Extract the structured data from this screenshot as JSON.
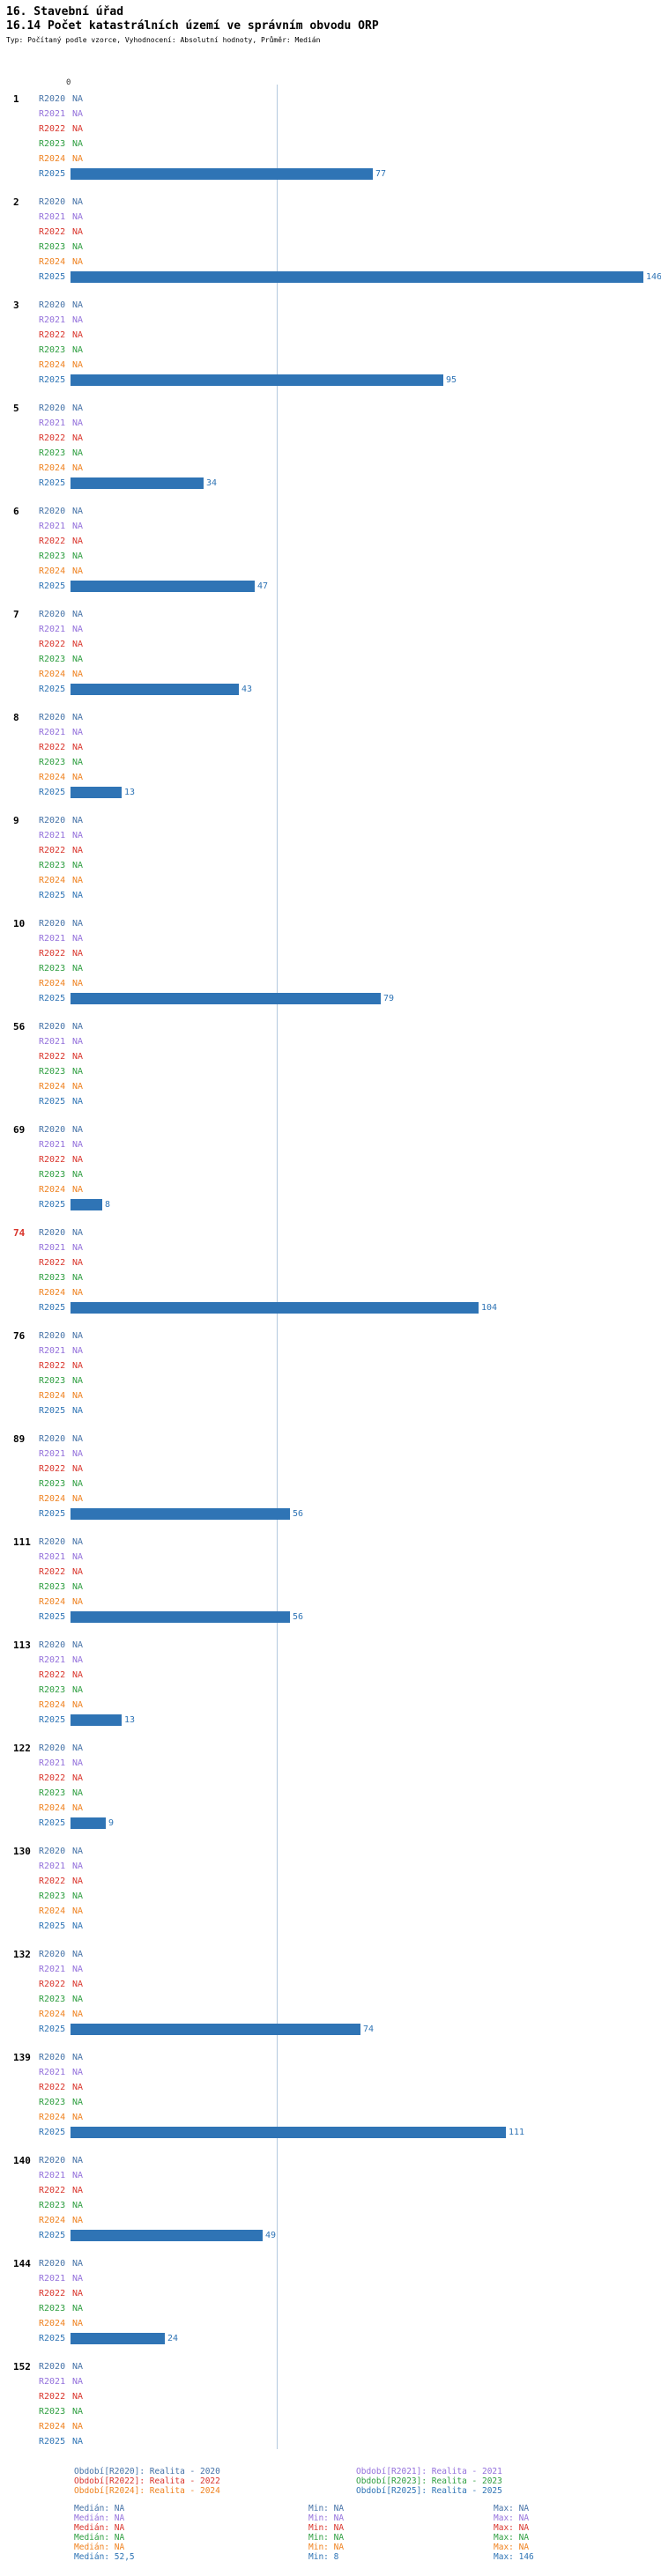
{
  "header": {
    "title": "16. Stavební úřad",
    "subtitle": "16.14 Počet katastrálních území ve správním obvodu ORP",
    "meta": "Typ: Počítaný podle vzorce, Vyhodnocení: Absolutní hodnoty, Průměr: Medián"
  },
  "chart_data": {
    "type": "bar",
    "orientation": "horizontal",
    "title": "16.14 Počet katastrálních území ve správním obvodu ORP",
    "axis_origin_label": "0",
    "xlim": [
      0,
      146
    ],
    "median_reference_line": 52.5,
    "na_label": "NA",
    "bar_color": "#2f74b5",
    "value_label_color": "#2f74b5",
    "median_line_color": "#b3c9de",
    "highlight_color": "#d9342b",
    "series": [
      {
        "name": "R2020",
        "color": "#4572a7"
      },
      {
        "name": "R2021",
        "color": "#9370db"
      },
      {
        "name": "R2022",
        "color": "#d9342b"
      },
      {
        "name": "R2023",
        "color": "#2e9e40"
      },
      {
        "name": "R2024",
        "color": "#ef8220"
      },
      {
        "name": "R2025",
        "color": "#2f74b5"
      }
    ],
    "groups": [
      {
        "label": "1",
        "highlighted": false,
        "values": [
          null,
          null,
          null,
          null,
          null,
          77
        ]
      },
      {
        "label": "2",
        "highlighted": false,
        "values": [
          null,
          null,
          null,
          null,
          null,
          146
        ]
      },
      {
        "label": "3",
        "highlighted": false,
        "values": [
          null,
          null,
          null,
          null,
          null,
          95
        ]
      },
      {
        "label": "5",
        "highlighted": false,
        "values": [
          null,
          null,
          null,
          null,
          null,
          34
        ]
      },
      {
        "label": "6",
        "highlighted": false,
        "values": [
          null,
          null,
          null,
          null,
          null,
          47
        ]
      },
      {
        "label": "7",
        "highlighted": false,
        "values": [
          null,
          null,
          null,
          null,
          null,
          43
        ]
      },
      {
        "label": "8",
        "highlighted": false,
        "values": [
          null,
          null,
          null,
          null,
          null,
          13
        ]
      },
      {
        "label": "9",
        "highlighted": false,
        "values": [
          null,
          null,
          null,
          null,
          null,
          null
        ]
      },
      {
        "label": "10",
        "highlighted": false,
        "values": [
          null,
          null,
          null,
          null,
          null,
          79
        ]
      },
      {
        "label": "56",
        "highlighted": false,
        "values": [
          null,
          null,
          null,
          null,
          null,
          null
        ]
      },
      {
        "label": "69",
        "highlighted": false,
        "values": [
          null,
          null,
          null,
          null,
          null,
          8
        ]
      },
      {
        "label": "74",
        "highlighted": true,
        "values": [
          null,
          null,
          null,
          null,
          null,
          104
        ]
      },
      {
        "label": "76",
        "highlighted": false,
        "values": [
          null,
          null,
          null,
          null,
          null,
          null
        ]
      },
      {
        "label": "89",
        "highlighted": false,
        "values": [
          null,
          null,
          null,
          null,
          null,
          56
        ]
      },
      {
        "label": "111",
        "highlighted": false,
        "values": [
          null,
          null,
          null,
          null,
          null,
          56
        ]
      },
      {
        "label": "113",
        "highlighted": false,
        "values": [
          null,
          null,
          null,
          null,
          null,
          13
        ]
      },
      {
        "label": "122",
        "highlighted": false,
        "values": [
          null,
          null,
          null,
          null,
          null,
          9
        ]
      },
      {
        "label": "130",
        "highlighted": false,
        "values": [
          null,
          null,
          null,
          null,
          null,
          null
        ]
      },
      {
        "label": "132",
        "highlighted": false,
        "values": [
          null,
          null,
          null,
          null,
          null,
          74
        ]
      },
      {
        "label": "139",
        "highlighted": false,
        "values": [
          null,
          null,
          null,
          null,
          null,
          111
        ]
      },
      {
        "label": "140",
        "highlighted": false,
        "values": [
          null,
          null,
          null,
          null,
          null,
          49
        ]
      },
      {
        "label": "144",
        "highlighted": false,
        "values": [
          null,
          null,
          null,
          null,
          null,
          24
        ]
      },
      {
        "label": "152",
        "highlighted": false,
        "values": [
          null,
          null,
          null,
          null,
          null,
          null
        ]
      }
    ],
    "legend_rows": [
      [
        {
          "series": "R2020",
          "label": "Období[R2020]: Realita - 2020"
        },
        {
          "series": "R2021",
          "label": "Období[R2021]: Realita - 2021"
        }
      ],
      [
        {
          "series": "R2022",
          "label": "Období[R2022]: Realita - 2022"
        },
        {
          "series": "R2023",
          "label": "Období[R2023]: Realita - 2023"
        }
      ],
      [
        {
          "series": "R2024",
          "label": "Období[R2024]: Realita - 2024"
        },
        {
          "series": "R2025",
          "label": "Období[R2025]: Realita - 2025"
        }
      ]
    ],
    "stats": {
      "median_label": "Medián:",
      "min_label": "Min:",
      "max_label": "Max:",
      "rows": [
        {
          "series": "R2020",
          "median": "NA",
          "min": "NA",
          "max": "NA"
        },
        {
          "series": "R2021",
          "median": "NA",
          "min": "NA",
          "max": "NA"
        },
        {
          "series": "R2022",
          "median": "NA",
          "min": "NA",
          "max": "NA"
        },
        {
          "series": "R2023",
          "median": "NA",
          "min": "NA",
          "max": "NA"
        },
        {
          "series": "R2024",
          "median": "NA",
          "min": "NA",
          "max": "NA"
        },
        {
          "series": "R2025",
          "median": "52,5",
          "min": "8",
          "max": "146"
        }
      ]
    }
  }
}
